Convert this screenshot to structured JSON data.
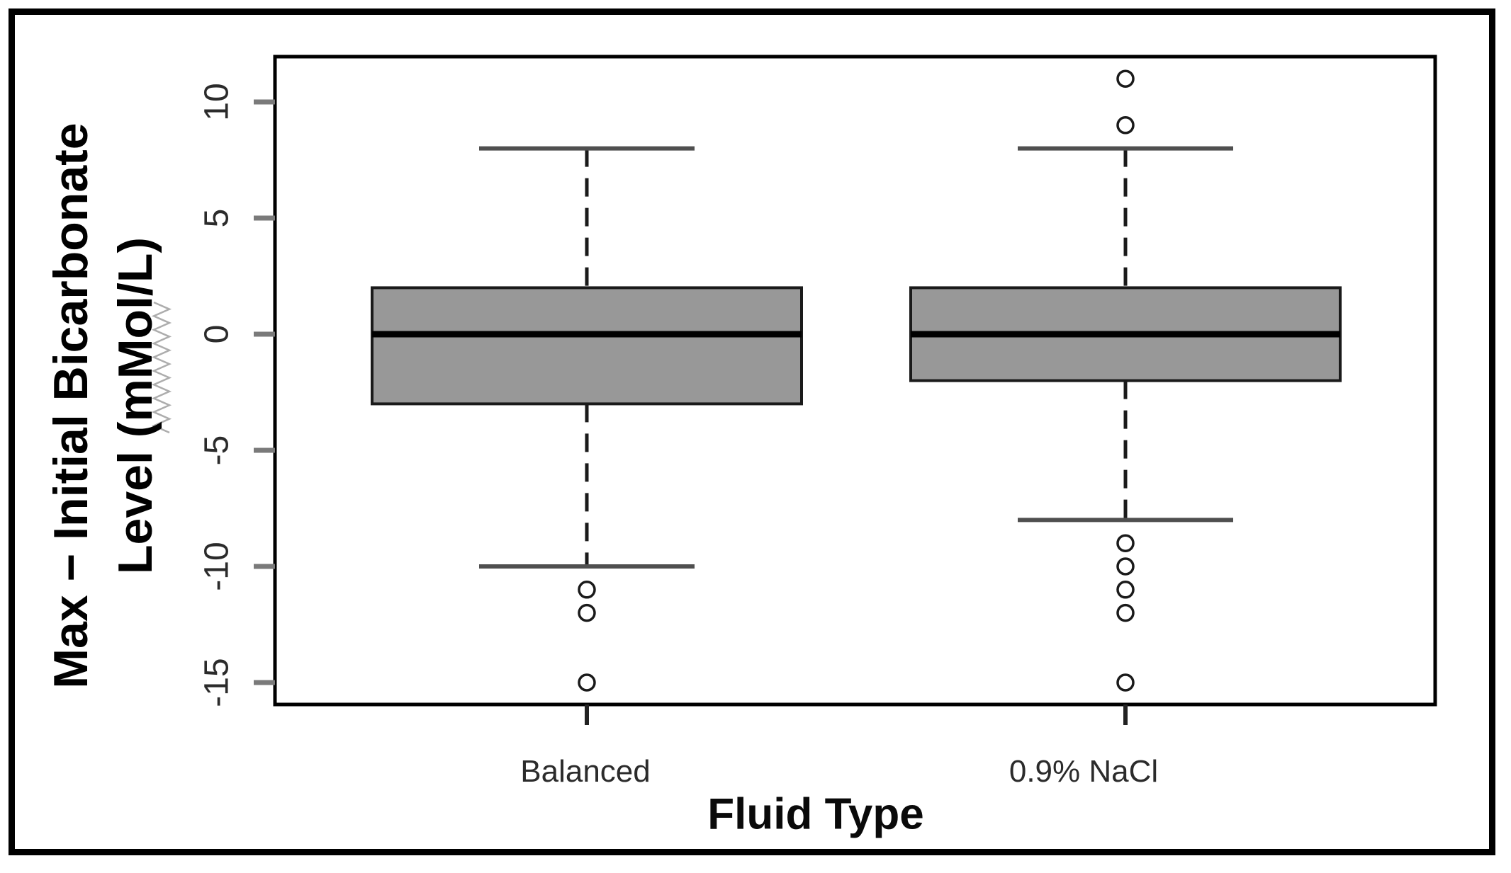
{
  "figure": {
    "background": "#ffffff",
    "frame_color": "#000000"
  },
  "chart_data": {
    "type": "boxplot",
    "title": "",
    "xlabel": "Fluid Type",
    "ylabel_lines": [
      "Max − Initial Bicarbonate",
      "Level (mMol/L)"
    ],
    "ylabel_zigzag_mark": true,
    "ylabel": "Max − Initial Bicarbonate Level (mMol/L)",
    "yticks": [
      10,
      5,
      0,
      -5,
      -10,
      -15
    ],
    "ytick_labels": [
      "10",
      "5",
      "0",
      "-5",
      "-10",
      "-15"
    ],
    "ylim": [
      -16,
      12
    ],
    "grid": false,
    "legend": null,
    "categories": [
      "Balanced",
      "0.9% NaCl"
    ],
    "series": [
      {
        "name": "Balanced",
        "q1": -3,
        "median": 0,
        "q3": 2,
        "whisker_low": -10,
        "whisker_high": 8,
        "outliers": [
          -11,
          -12,
          -15
        ]
      },
      {
        "name": "0.9% NaCl",
        "q1": -2,
        "median": 0,
        "q3": 2,
        "whisker_low": -8,
        "whisker_high": 8,
        "outliers": [
          11,
          9,
          -9,
          -10,
          -11,
          -12,
          -15
        ]
      }
    ],
    "colors": {
      "box_fill": "#989898",
      "box_border": "#1a1a1a",
      "median": "#000000",
      "whisker": "#1a1a1a",
      "whisker_cap": "#4f4f4f",
      "outlier_ring": "#1a1a1a",
      "axis_spine": "#000000",
      "y_tick": "#7a7a7a",
      "x_tick": "#222222",
      "tick_text": "#2b2b2b",
      "zigzag": "#adadad"
    }
  }
}
